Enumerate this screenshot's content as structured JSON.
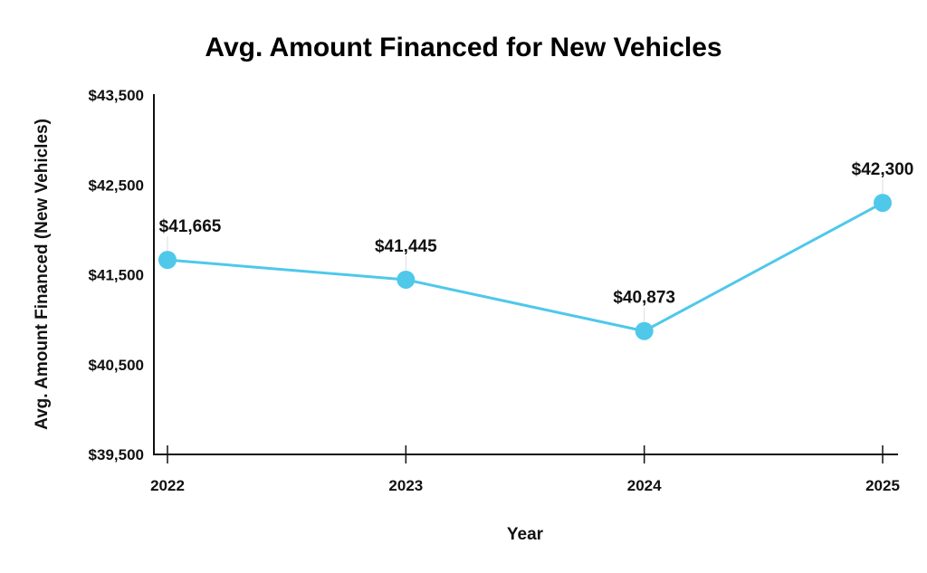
{
  "chart_data": {
    "type": "line",
    "title": "Avg. Amount Financed for New Vehicles",
    "xlabel": "Year",
    "ylabel": "Avg. Amount Financed (New Vehicles)",
    "categories": [
      "2022",
      "2023",
      "2024",
      "2025"
    ],
    "series": [
      {
        "name": "Avg. Amount Financed (New Vehicles)",
        "values": [
          41665,
          41445,
          40873,
          42300
        ],
        "data_labels": [
          "$41,665",
          "$41,445",
          "$40,873",
          "$42,300"
        ],
        "color": "#4FC8EA"
      }
    ],
    "ylim": [
      39500,
      43500
    ],
    "yticks": [
      39500,
      40500,
      41500,
      42500,
      43500
    ],
    "ytick_labels": [
      "$39,500",
      "$40,500",
      "$41,500",
      "$42,500",
      "$43,500"
    ],
    "grid": false,
    "legend": "none"
  }
}
